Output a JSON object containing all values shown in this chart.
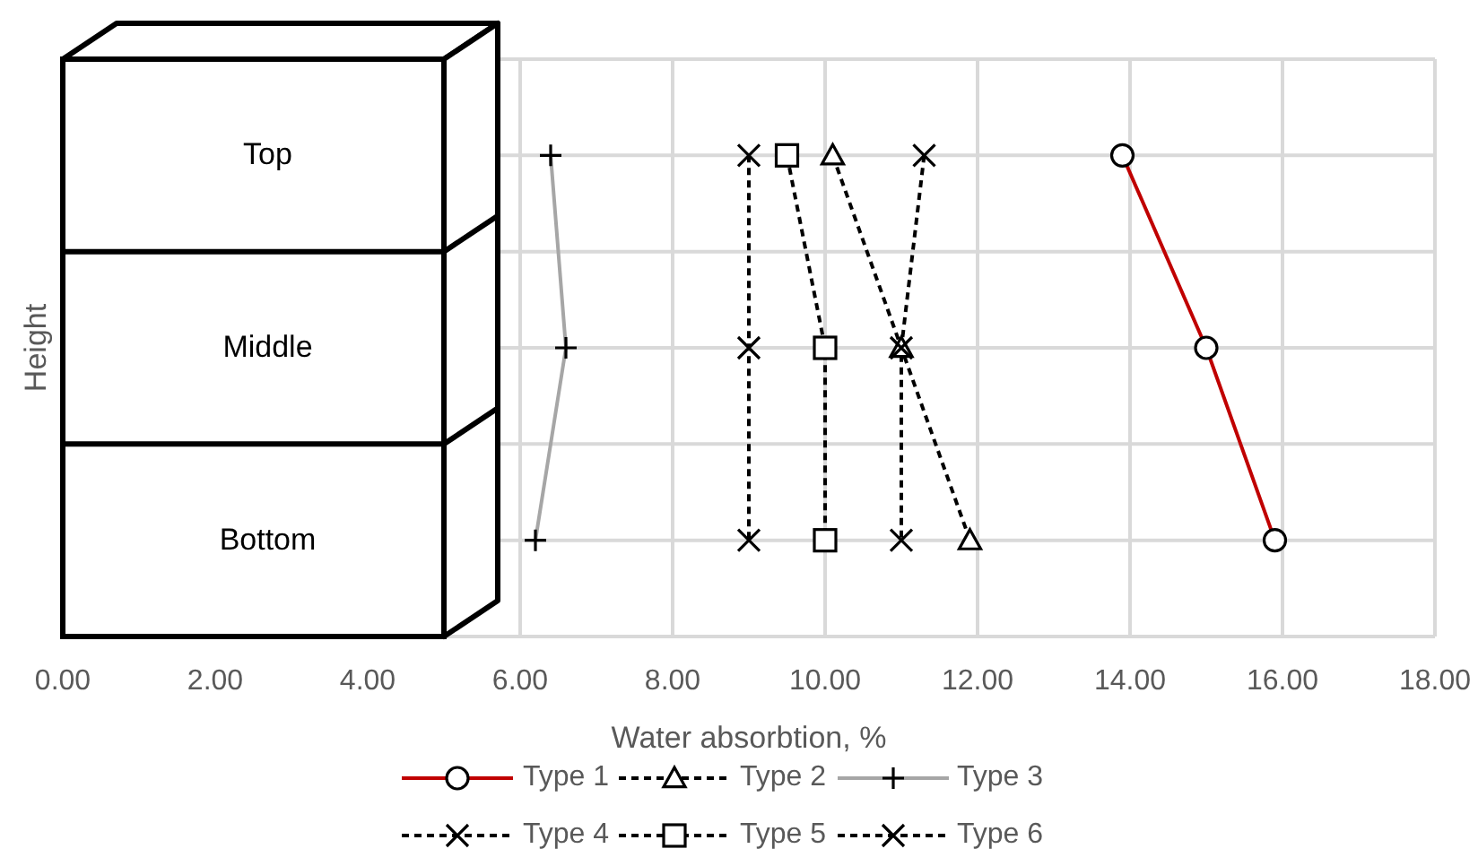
{
  "chart_data": {
    "type": "line",
    "orientation": "horizontal",
    "xlabel": "Water absorbtion, %",
    "ylabel": "Height",
    "categories": [
      "Top",
      "Middle",
      "Bottom"
    ],
    "series": [
      {
        "name": "Type 1",
        "color": "#c00000",
        "values": [
          13.9,
          15.0,
          15.9
        ],
        "marker": "circle",
        "line_style": "solid"
      },
      {
        "name": "Type 2",
        "color": "#000000",
        "values": [
          10.1,
          11.0,
          11.9
        ],
        "marker": "triangle",
        "line_style": "dashed"
      },
      {
        "name": "Type 3",
        "color": "#a6a6a6",
        "values": [
          6.4,
          6.6,
          6.2
        ],
        "marker": "plus",
        "line_style": "solid"
      },
      {
        "name": "Type 4",
        "color": "#000000",
        "values": [
          9.0,
          9.0,
          9.0
        ],
        "marker": "cross",
        "line_style": "dashed"
      },
      {
        "name": "Type 5",
        "color": "#000000",
        "values": [
          9.5,
          10.0,
          10.0
        ],
        "marker": "square",
        "line_style": "dashed"
      },
      {
        "name": "Type 6",
        "color": "#000000",
        "values": [
          11.3,
          11.0,
          11.0
        ],
        "marker": "cross",
        "line_style": "dashed"
      }
    ],
    "xlim": [
      0,
      18
    ],
    "xticks": [
      {
        "value": 0,
        "label": "0.00"
      },
      {
        "value": 2,
        "label": "2.00"
      },
      {
        "value": 4,
        "label": "4.00"
      },
      {
        "value": 6,
        "label": "6.00"
      },
      {
        "value": 8,
        "label": "8.00"
      },
      {
        "value": 10,
        "label": "10.00"
      },
      {
        "value": 12,
        "label": "12.00"
      },
      {
        "value": 14,
        "label": "14.00"
      },
      {
        "value": 16,
        "label": "16.00"
      },
      {
        "value": 18,
        "label": "18.00"
      }
    ],
    "grid": true,
    "legend": "bottom"
  }
}
